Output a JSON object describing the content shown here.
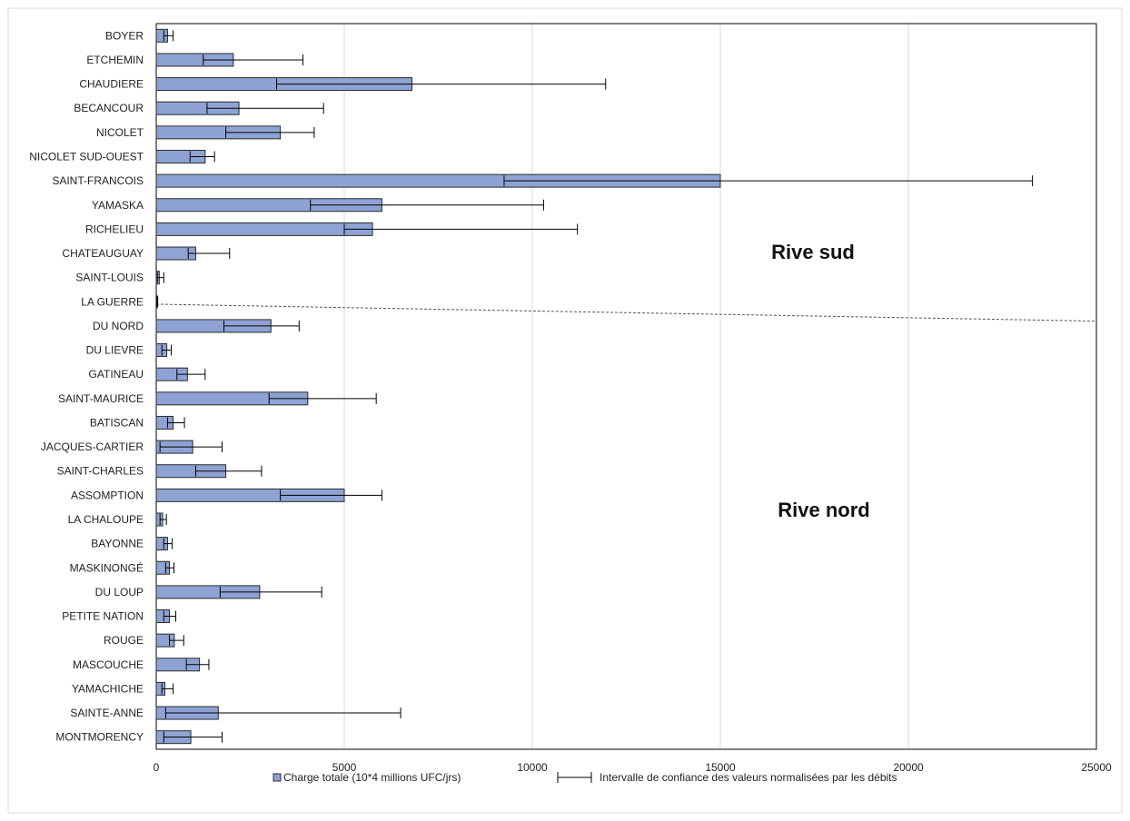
{
  "chart_data": {
    "type": "bar",
    "orientation": "horizontal",
    "categories": [
      "BOYER",
      "ETCHEMIN",
      "CHAUDIERE",
      "BECANCOUR",
      "NICOLET",
      "NICOLET SUD-OUEST",
      "SAINT-FRANCOIS",
      "YAMASKA",
      "RICHELIEU",
      "CHATEAUGUAY",
      "SAINT-LOUIS",
      "LA GUERRE",
      "DU NORD",
      "DU LIEVRE",
      "GATINEAU",
      "SAINT-MAURICE",
      "BATISCAN",
      "JACQUES-CARTIER",
      "SAINT-CHARLES",
      "ASSOMPTION",
      "LA CHALOUPE",
      "BAYONNE",
      "MASKINONGÉ",
      "DU LOUP",
      "PETITE NATION",
      "ROUGE",
      "MASCOUCHE",
      "YAMACHICHE",
      "SAINTE-ANNE",
      "MONTMORENCY"
    ],
    "series": [
      {
        "name": "Charge totale (10*4 millions UFC/jrs)",
        "values": [
          300,
          2050,
          6800,
          2200,
          3300,
          1300,
          15000,
          6000,
          5750,
          1050,
          80,
          20,
          3050,
          280,
          830,
          4030,
          450,
          970,
          1850,
          5000,
          170,
          300,
          350,
          2750,
          350,
          480,
          1150,
          230,
          1650,
          920
        ],
        "ci_low": [
          200,
          1250,
          3200,
          1350,
          1850,
          900,
          9250,
          4100,
          5000,
          850,
          30,
          0,
          1800,
          150,
          550,
          3000,
          300,
          100,
          1050,
          3300,
          100,
          200,
          250,
          1700,
          200,
          350,
          800,
          150,
          250,
          200
        ],
        "ci_high": [
          450,
          3900,
          11950,
          4450,
          4200,
          1550,
          23300,
          10300,
          11200,
          1950,
          200,
          40,
          3800,
          400,
          1300,
          5850,
          750,
          1750,
          2800,
          6000,
          270,
          420,
          470,
          4400,
          520,
          730,
          1400,
          450,
          6500,
          1750
        ]
      }
    ],
    "xlim": [
      0,
      25000
    ],
    "xticks": [
      0,
      5000,
      10000,
      15000,
      20000,
      25000
    ],
    "grid": "vertical",
    "annotations": [
      "Rive sud",
      "Rive nord"
    ],
    "legend": {
      "position": "bottom",
      "entries": [
        "Charge totale (10*4 millions UFC/jrs)",
        "Intervalle de confiance des valeurs normalisées par les débits"
      ]
    },
    "colors": {
      "bar_fill": "#8FA2D4",
      "bar_stroke": "#2B2B2B",
      "grid": "#D9D9D9",
      "error_bar": "#000000",
      "separator": "#555555"
    }
  }
}
